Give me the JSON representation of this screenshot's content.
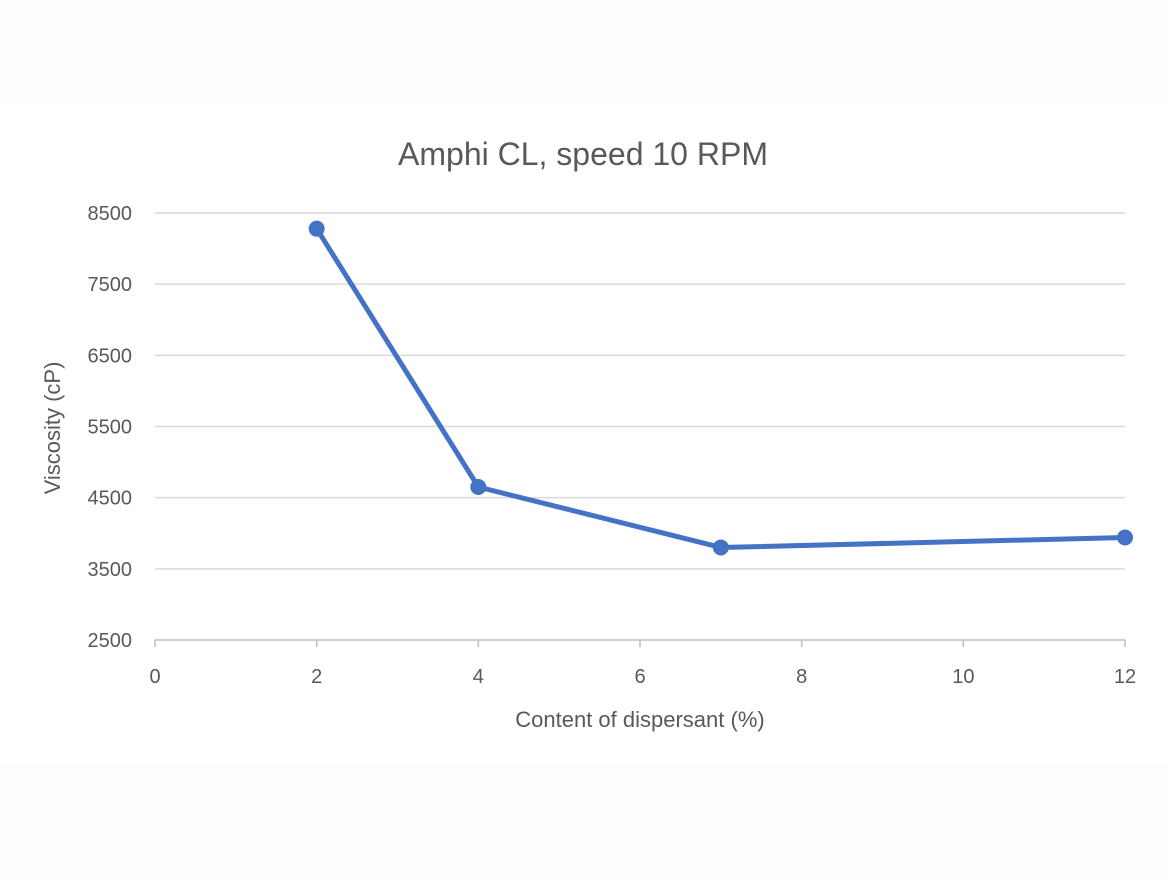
{
  "chart_data": {
    "type": "line",
    "title": "Amphi CL, speed 10 RPM",
    "xlabel": "Content of dispersant (%)",
    "ylabel": "Viscosity (cP)",
    "xlim": [
      0,
      12
    ],
    "ylim": [
      2500,
      8500
    ],
    "x_ticks": [
      0,
      2,
      4,
      6,
      8,
      10,
      12
    ],
    "y_ticks": [
      2500,
      3500,
      4500,
      5500,
      6500,
      7500,
      8500
    ],
    "grid": true,
    "series": [
      {
        "color": "#4472c4",
        "points": [
          {
            "x": 2,
            "y": 8280
          },
          {
            "x": 4,
            "y": 4650
          },
          {
            "x": 7,
            "y": 3800
          },
          {
            "x": 12,
            "y": 3940
          }
        ]
      }
    ]
  }
}
